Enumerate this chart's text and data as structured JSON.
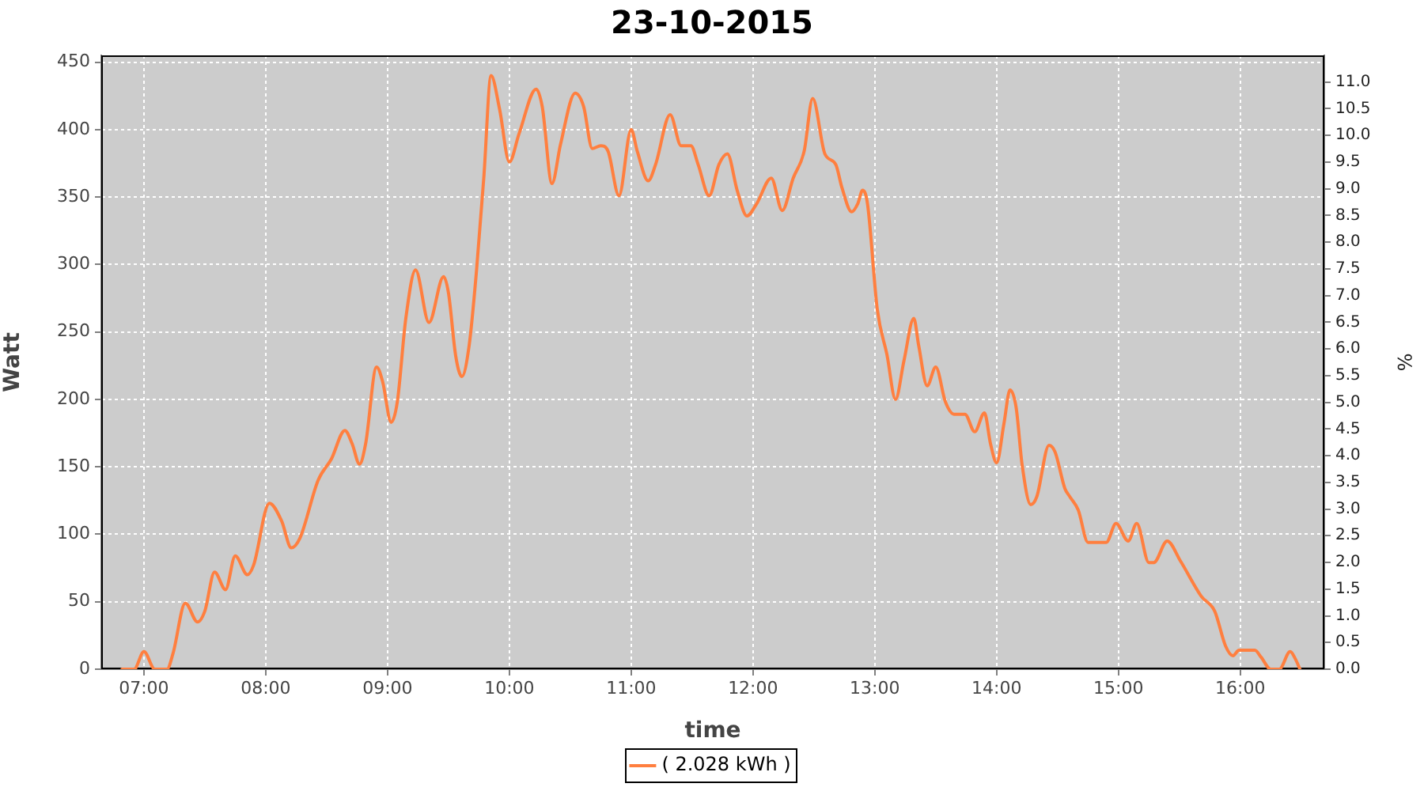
{
  "chart_data": {
    "type": "line",
    "title": "23-10-2015",
    "xlabel": "time",
    "ylabel": "Watt",
    "y2label": "%",
    "x": [
      6.82,
      6.92,
      7.0,
      7.09,
      7.19,
      7.24,
      7.34,
      7.44,
      7.5,
      7.58,
      7.67,
      7.75,
      7.85,
      7.9,
      8.03,
      8.13,
      8.21,
      8.28,
      8.43,
      8.54,
      8.65,
      8.71,
      8.77,
      8.82,
      8.91,
      8.96,
      9.03,
      9.08,
      9.15,
      9.23,
      9.34,
      9.46,
      9.5,
      9.56,
      9.61,
      9.67,
      9.73,
      9.79,
      9.85,
      9.92,
      10.0,
      10.08,
      10.22,
      10.27,
      10.35,
      10.42,
      10.54,
      10.61,
      10.68,
      10.75,
      10.81,
      10.9,
      11.0,
      11.05,
      11.14,
      11.2,
      11.32,
      11.41,
      11.49,
      11.55,
      11.64,
      11.72,
      11.79,
      11.87,
      11.95,
      12.03,
      12.15,
      12.24,
      12.33,
      12.42,
      12.49,
      12.59,
      12.68,
      12.73,
      12.81,
      12.86,
      12.9,
      12.94,
      13.02,
      13.1,
      13.17,
      13.24,
      13.32,
      13.36,
      13.43,
      13.5,
      13.58,
      13.65,
      13.74,
      13.82,
      13.9,
      13.95,
      14.0,
      14.06,
      14.11,
      14.16,
      14.21,
      14.28,
      14.33,
      14.43,
      14.48,
      14.56,
      14.6,
      14.67,
      14.75,
      14.82,
      14.9,
      14.98,
      15.08,
      15.15,
      15.25,
      15.29,
      15.4,
      15.51,
      15.68,
      15.79,
      15.88,
      15.94,
      15.99,
      16.12,
      16.17,
      16.25,
      16.32,
      16.41,
      16.45,
      16.49
    ],
    "series": [
      {
        "name": "( 2.028 kWh )",
        "color": "#ff7f3f",
        "values": [
          0,
          0,
          13,
          0,
          0,
          12,
          49,
          35,
          43,
          72,
          59,
          84,
          70,
          77,
          123,
          110,
          90,
          97,
          140,
          156,
          177,
          167,
          152,
          167,
          224,
          213,
          183,
          198,
          260,
          296,
          257,
          291,
          279,
          232,
          217,
          240,
          295,
          364,
          440,
          415,
          376,
          397,
          430,
          417,
          360,
          389,
          427,
          417,
          386,
          388,
          384,
          351,
          400,
          384,
          362,
          374,
          411,
          388,
          388,
          374,
          351,
          374,
          382,
          355,
          336,
          345,
          364,
          340,
          364,
          384,
          423,
          382,
          374,
          357,
          339,
          345,
          355,
          345,
          267,
          233,
          200,
          229,
          260,
          240,
          210,
          224,
          198,
          189,
          189,
          176,
          190,
          167,
          153,
          182,
          207,
          194,
          151,
          122,
          128,
          166,
          161,
          134,
          128,
          118,
          94,
          94,
          94,
          108,
          95,
          108,
          79,
          79,
          95,
          80,
          54,
          43,
          17,
          10,
          14,
          14,
          9,
          0,
          0,
          13,
          8,
          0
        ]
      }
    ],
    "xlim": [
      6.65,
      16.69
    ],
    "xticks": [
      {
        "value": 7,
        "label": "07:00"
      },
      {
        "value": 8,
        "label": "08:00"
      },
      {
        "value": 9,
        "label": "09:00"
      },
      {
        "value": 10,
        "label": "10:00"
      },
      {
        "value": 11,
        "label": "11:00"
      },
      {
        "value": 12,
        "label": "12:00"
      },
      {
        "value": 13,
        "label": "13:00"
      },
      {
        "value": 14,
        "label": "14:00"
      },
      {
        "value": 15,
        "label": "15:00"
      },
      {
        "value": 16,
        "label": "16:00"
      }
    ],
    "ylim": [
      0,
      455
    ],
    "yticks": [
      0,
      50,
      100,
      150,
      200,
      250,
      300,
      350,
      400,
      450
    ],
    "y2lim": [
      0,
      11.5
    ],
    "y2ticks": [
      {
        "value": 0,
        "label": "0.0"
      },
      0.5,
      {
        "value": 1,
        "label": "1.0"
      },
      1.5,
      {
        "value": 2,
        "label": "2.0"
      },
      2.5,
      {
        "value": 3,
        "label": "3.0"
      },
      3.5,
      {
        "value": 4,
        "label": "4.0"
      },
      4.5,
      {
        "value": 5,
        "label": "5.0"
      },
      5.5,
      {
        "value": 6,
        "label": "6.0"
      },
      6.5,
      {
        "value": 7,
        "label": "7.0"
      },
      7.5,
      {
        "value": 8,
        "label": "8.0"
      },
      8.5,
      {
        "value": 9,
        "label": "9.0"
      },
      9.5,
      {
        "value": 10,
        "label": "10.0"
      },
      10.5,
      {
        "value": 11,
        "label": "11.0"
      }
    ],
    "grid": true,
    "legend": "bottom",
    "marker": "none"
  }
}
